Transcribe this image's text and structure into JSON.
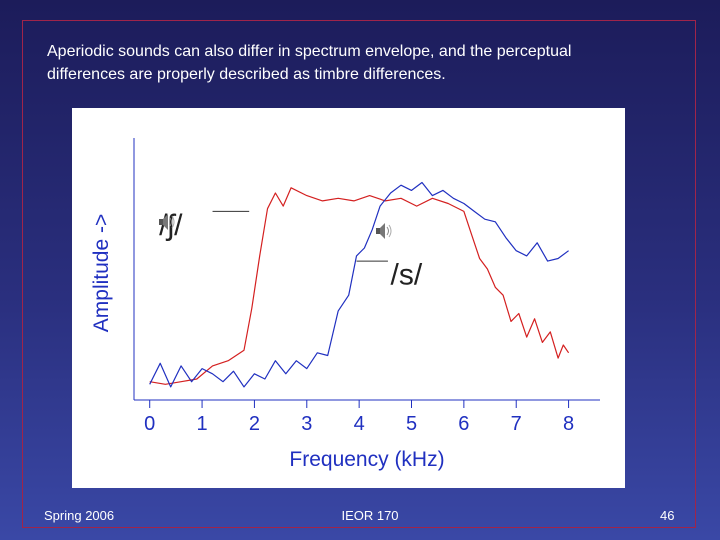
{
  "slide": {
    "heading_lines": [
      "Aperiodic sounds can also differ in spectrum envelope, and the perceptual",
      "differences are properly described as timbre differences."
    ],
    "footer": {
      "left": "Spring 2006",
      "center": "IEOR 170",
      "right": "46"
    }
  },
  "chart_data": {
    "type": "line",
    "xlabel": "Frequency (kHz)",
    "ylabel": "Amplitude ->",
    "xlim": [
      -0.3,
      8.6
    ],
    "ylim": [
      0,
      1
    ],
    "xticks": [
      "0",
      "1",
      "2",
      "3",
      "4",
      "5",
      "6",
      "7",
      "8"
    ],
    "grid": false,
    "series": [
      {
        "name": "/ʃ/",
        "color": "#d42020",
        "x": [
          0.0,
          0.3,
          0.6,
          0.9,
          1.2,
          1.5,
          1.8,
          1.95,
          2.1,
          2.25,
          2.4,
          2.55,
          2.7,
          3.0,
          3.3,
          3.6,
          3.9,
          4.2,
          4.5,
          4.8,
          5.1,
          5.4,
          5.7,
          6.0,
          6.15,
          6.3,
          6.45,
          6.6,
          6.75,
          6.9,
          7.05,
          7.2,
          7.35,
          7.5,
          7.65,
          7.8,
          7.9,
          8.0
        ],
        "y": [
          0.07,
          0.06,
          0.07,
          0.08,
          0.13,
          0.15,
          0.19,
          0.35,
          0.55,
          0.73,
          0.79,
          0.74,
          0.81,
          0.78,
          0.76,
          0.77,
          0.76,
          0.78,
          0.76,
          0.77,
          0.74,
          0.77,
          0.75,
          0.72,
          0.63,
          0.54,
          0.5,
          0.43,
          0.4,
          0.3,
          0.33,
          0.24,
          0.31,
          0.22,
          0.26,
          0.16,
          0.21,
          0.18
        ]
      },
      {
        "name": "/s/",
        "color": "#2030c0",
        "x": [
          0.0,
          0.2,
          0.4,
          0.6,
          0.8,
          1.0,
          1.2,
          1.4,
          1.6,
          1.8,
          2.0,
          2.2,
          2.4,
          2.6,
          2.8,
          3.0,
          3.2,
          3.4,
          3.6,
          3.8,
          3.95,
          4.1,
          4.25,
          4.4,
          4.6,
          4.8,
          5.0,
          5.2,
          5.4,
          5.6,
          5.8,
          6.0,
          6.2,
          6.4,
          6.6,
          6.8,
          7.0,
          7.2,
          7.4,
          7.6,
          7.8,
          8.0
        ],
        "y": [
          0.06,
          0.14,
          0.05,
          0.13,
          0.07,
          0.12,
          0.1,
          0.07,
          0.11,
          0.05,
          0.1,
          0.08,
          0.15,
          0.1,
          0.15,
          0.12,
          0.18,
          0.17,
          0.34,
          0.4,
          0.55,
          0.58,
          0.65,
          0.74,
          0.79,
          0.82,
          0.8,
          0.83,
          0.78,
          0.8,
          0.77,
          0.75,
          0.72,
          0.69,
          0.68,
          0.62,
          0.57,
          0.55,
          0.6,
          0.53,
          0.54,
          0.57
        ]
      }
    ],
    "annotations": [
      "/ʃ/",
      "/s/"
    ]
  }
}
